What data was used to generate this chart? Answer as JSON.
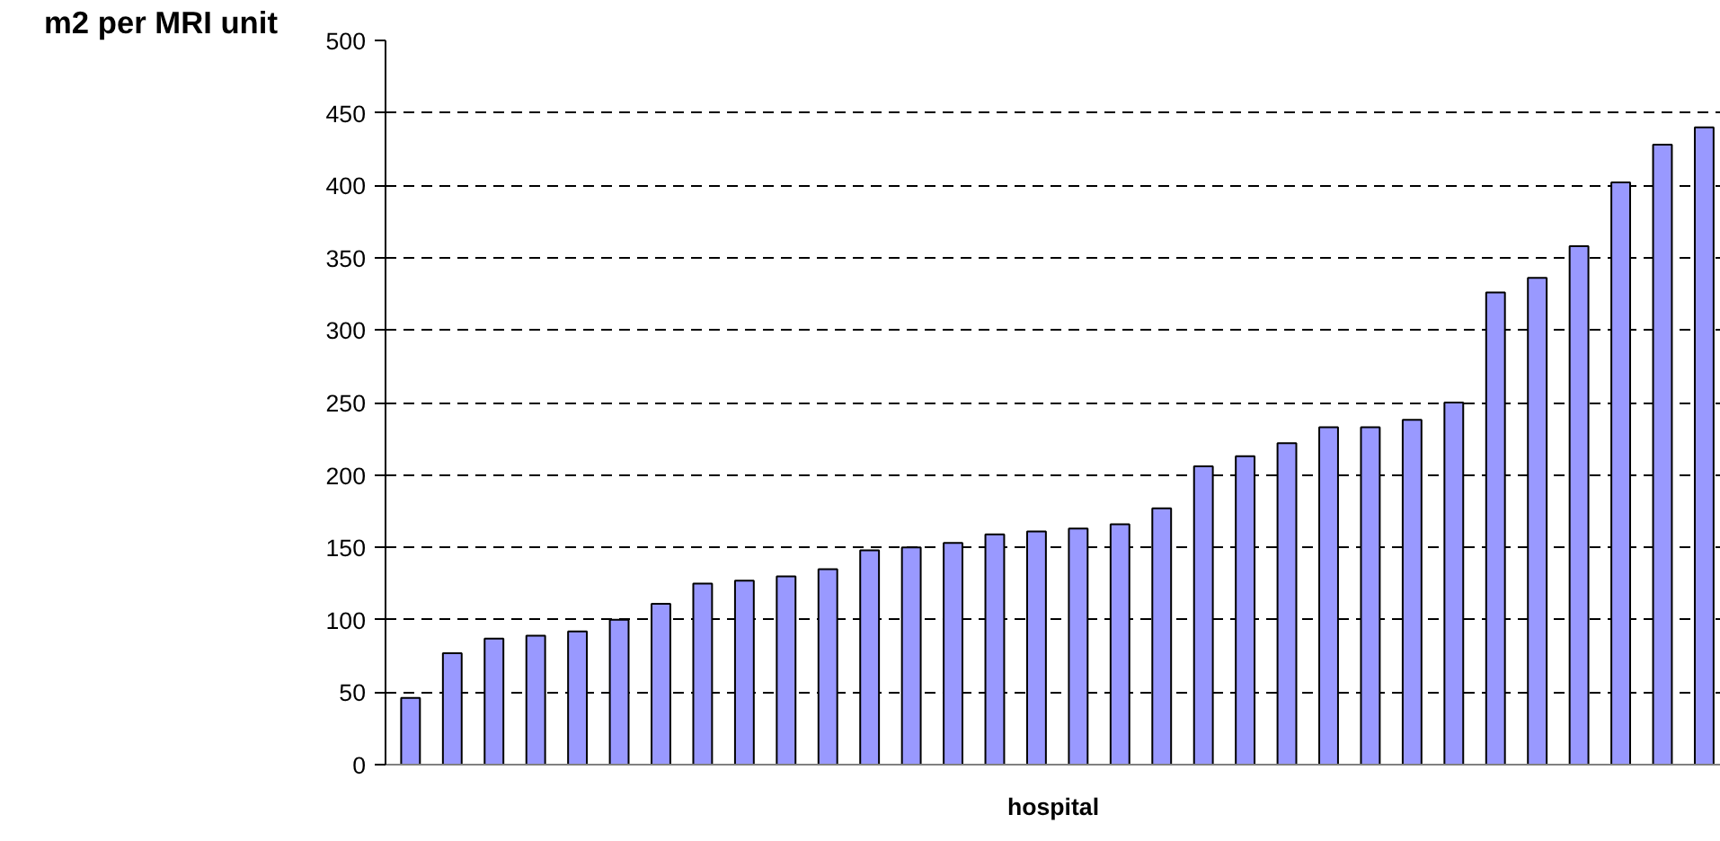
{
  "chart_data": {
    "type": "bar",
    "ylabel": "m2 per MRI unit",
    "xlabel": "hospital",
    "categories": [
      null,
      null,
      null,
      null,
      null,
      null,
      null,
      null,
      null,
      null,
      null,
      null,
      null,
      null,
      null,
      null,
      null,
      null,
      null,
      null,
      null,
      null,
      null,
      null,
      null,
      null,
      null,
      null,
      null,
      null,
      null,
      null
    ],
    "values": [
      46,
      77,
      87,
      89,
      92,
      100,
      111,
      125,
      127,
      130,
      135,
      148,
      150,
      153,
      159,
      161,
      163,
      166,
      177,
      206,
      213,
      222,
      233,
      233,
      238,
      250,
      326,
      336,
      358,
      402,
      428,
      440
    ],
    "color": "#9999ff",
    "ylim": [
      0,
      500
    ],
    "yticks": [
      0,
      50,
      100,
      150,
      200,
      250,
      300,
      350,
      400,
      450,
      500
    ],
    "grid": "y"
  }
}
